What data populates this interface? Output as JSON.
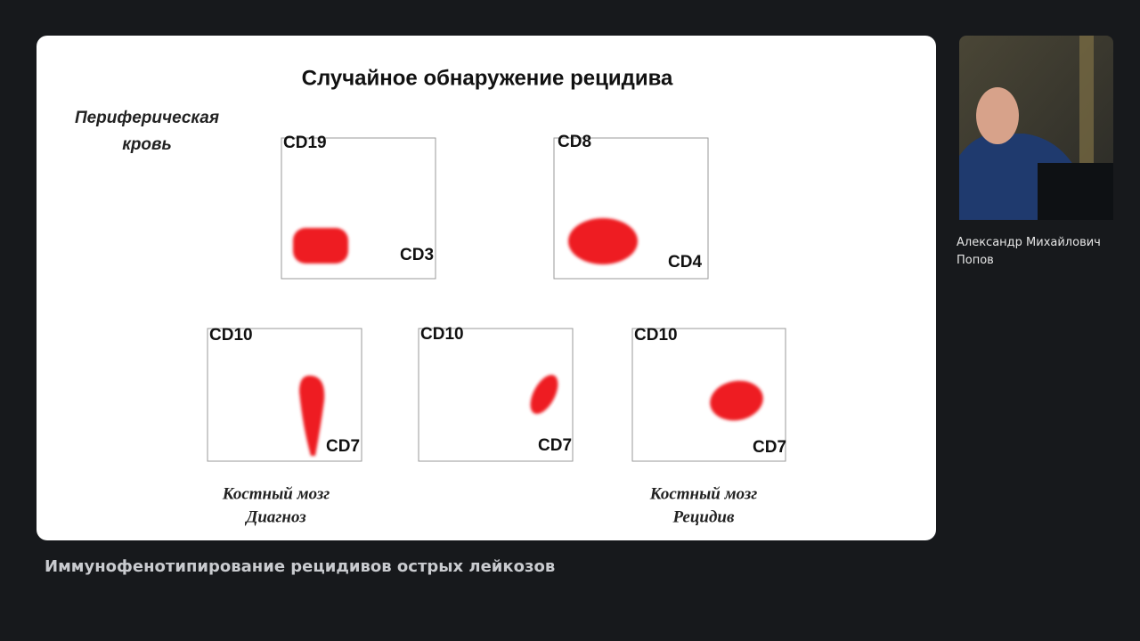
{
  "slide": {
    "title": "Случайное обнаружение рецидива",
    "side_label": [
      "Периферическая",
      "кровь"
    ],
    "plots": [
      {
        "y_label": "CD19",
        "x_label": "CD3"
      },
      {
        "y_label": "CD8",
        "x_label": "CD4"
      },
      {
        "y_label": "CD10",
        "x_label": "CD7"
      },
      {
        "y_label": "CD10",
        "x_label": "CD7"
      },
      {
        "y_label": "CD10",
        "x_label": "CD7"
      }
    ],
    "captions": [
      {
        "lines": [
          "Костный мозг",
          "Диагноз"
        ]
      },
      {
        "lines": [
          "Костный мозг",
          "Рецидив"
        ]
      }
    ]
  },
  "speaker": {
    "name": "Александр Михайлович Попов"
  },
  "caption": "Иммунофенотипирование рецидивов острых лейкозов"
}
